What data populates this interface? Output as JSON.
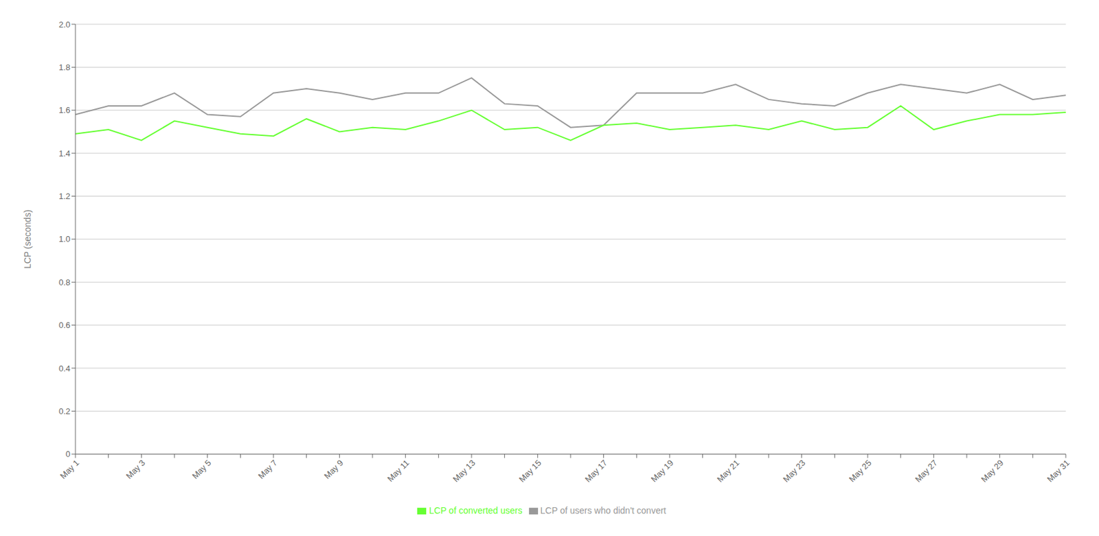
{
  "chart_data": {
    "type": "line",
    "ylabel": "LCP (seconds)",
    "categories": [
      "May 1",
      null,
      "May 3",
      null,
      "May 5",
      null,
      "May 7",
      null,
      "May 9",
      null,
      "May 11",
      null,
      "May 13",
      null,
      "May 15",
      null,
      "May 17",
      null,
      "May 19",
      null,
      "May 21",
      null,
      "May 23",
      null,
      "May 25",
      null,
      "May 27",
      null,
      "May 29",
      null,
      "May 31"
    ],
    "series": [
      {
        "name": "LCP of users who didn't convert",
        "color": "#999999",
        "values": [
          1.58,
          1.62,
          1.62,
          1.68,
          1.58,
          1.57,
          1.68,
          1.7,
          1.68,
          1.65,
          1.68,
          1.68,
          1.75,
          1.63,
          1.62,
          1.52,
          1.53,
          1.68,
          1.68,
          1.68,
          1.72,
          1.65,
          1.63,
          1.62,
          1.68,
          1.72,
          1.7,
          1.68,
          1.72,
          1.65,
          1.67
        ]
      },
      {
        "name": "LCP of converted users",
        "color": "#66ff33",
        "values": [
          1.49,
          1.51,
          1.46,
          1.55,
          1.52,
          1.49,
          1.48,
          1.56,
          1.5,
          1.52,
          1.51,
          1.55,
          1.6,
          1.51,
          1.52,
          1.46,
          1.53,
          1.54,
          1.51,
          1.52,
          1.53,
          1.51,
          1.55,
          1.51,
          1.52,
          1.62,
          1.51,
          1.55,
          1.58,
          1.58,
          1.59
        ]
      }
    ],
    "ylim": [
      0,
      2.0
    ],
    "yticks": [
      0,
      0.2,
      0.4,
      0.6,
      0.8,
      {
        "value": 1,
        "label": "1.0"
      },
      1.2,
      1.4,
      1.6,
      1.8,
      {
        "value": 2,
        "label": "2.0"
      }
    ],
    "grid": true,
    "legend": "bottom"
  }
}
